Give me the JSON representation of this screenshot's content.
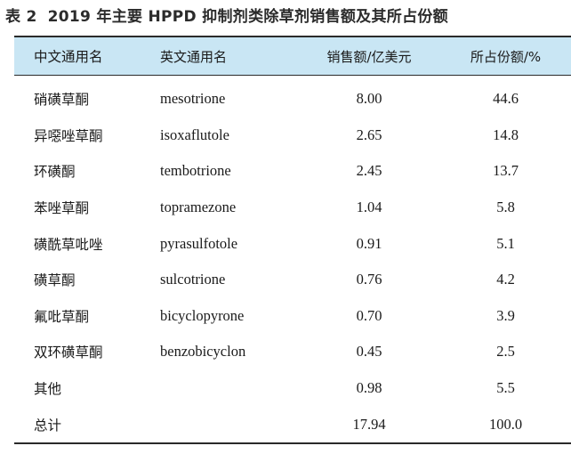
{
  "caption": {
    "label": "表 2",
    "title": "2019 年主要 HPPD 抑制剂类除草剂销售额及其所占份额"
  },
  "table": {
    "headers": [
      "中文通用名",
      "英文通用名",
      "销售额/亿美元",
      "所占份额/%"
    ],
    "rows": [
      {
        "cn": "硝磺草酮",
        "en": "mesotrione",
        "sales": "8.00",
        "share": "44.6"
      },
      {
        "cn": "异噁唑草酮",
        "en": "isoxaflutole",
        "sales": "2.65",
        "share": "14.8"
      },
      {
        "cn": "环磺酮",
        "en": "tembotrione",
        "sales": "2.45",
        "share": "13.7"
      },
      {
        "cn": "苯唑草酮",
        "en": "topramezone",
        "sales": "1.04",
        "share": "5.8"
      },
      {
        "cn": "磺酰草吡唑",
        "en": "pyrasulfotole",
        "sales": "0.91",
        "share": "5.1"
      },
      {
        "cn": "磺草酮",
        "en": "sulcotrione",
        "sales": "0.76",
        "share": "4.2"
      },
      {
        "cn": "氟吡草酮",
        "en": "bicyclopyrone",
        "sales": "0.70",
        "share": "3.9"
      },
      {
        "cn": "双环磺草酮",
        "en": "benzobicyclon",
        "sales": "0.45",
        "share": "2.5"
      },
      {
        "cn": "其他",
        "en": "",
        "sales": "0.98",
        "share": "5.5"
      },
      {
        "cn": "总计",
        "en": "",
        "sales": "17.94",
        "share": "100.0"
      }
    ]
  },
  "colors": {
    "header_bg": "#c9e6f4",
    "rule": "#2a2a2a"
  }
}
